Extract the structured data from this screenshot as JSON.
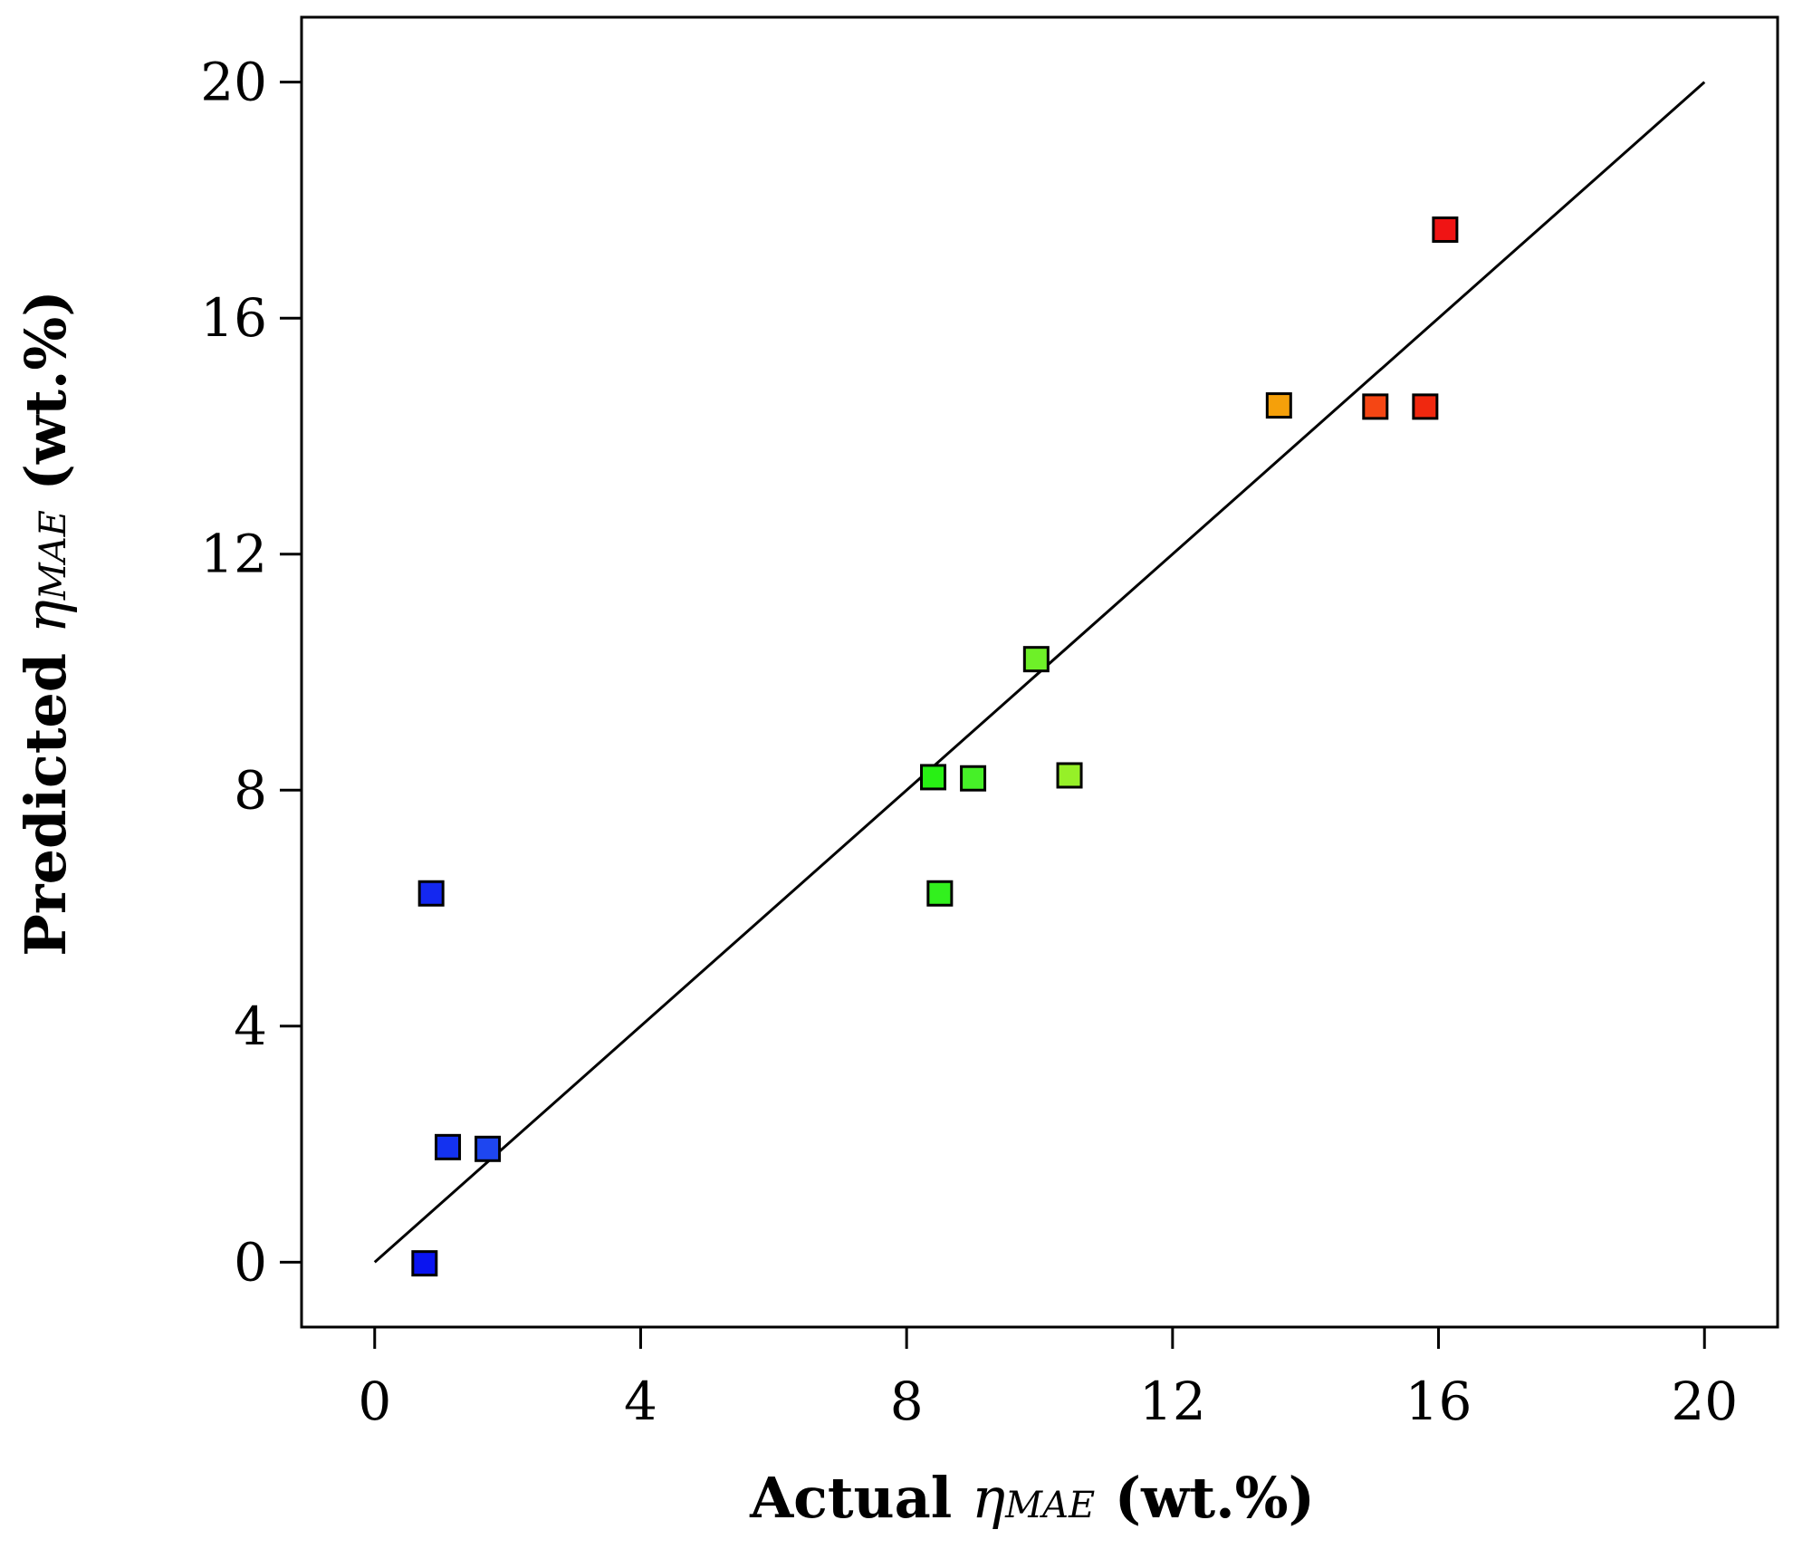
{
  "chart_data": {
    "type": "scatter",
    "title": "",
    "xlabel": {
      "prefix": "Actual ",
      "symbol": "η",
      "subscript": "MAE",
      "suffix": " (wt.%)"
    },
    "ylabel": {
      "prefix": "Predicted ",
      "symbol": "η",
      "subscript": "MAE",
      "suffix": " (wt.%)"
    },
    "xlim": [
      -1.1,
      21.1
    ],
    "ylim": [
      -1.1,
      21.1
    ],
    "xticks": [
      0,
      4,
      8,
      12,
      16,
      20
    ],
    "yticks": [
      0,
      4,
      8,
      12,
      16,
      20
    ],
    "xtick_labels": [
      "0",
      "4",
      "8",
      "12",
      "16",
      "20"
    ],
    "ytick_labels": [
      "0",
      "4",
      "8",
      "12",
      "16",
      "20"
    ],
    "grid": false,
    "reference_line": {
      "x": [
        0,
        20
      ],
      "y": [
        0,
        20
      ]
    },
    "points": [
      {
        "x": 0.75,
        "y": -0.02,
        "color": "#0a14f0"
      },
      {
        "x": 0.85,
        "y": 6.25,
        "color": "#1428f0"
      },
      {
        "x": 1.1,
        "y": 1.95,
        "color": "#1432f0"
      },
      {
        "x": 1.7,
        "y": 1.92,
        "color": "#1e46f0"
      },
      {
        "x": 8.4,
        "y": 8.22,
        "color": "#28f014"
      },
      {
        "x": 8.5,
        "y": 6.25,
        "color": "#32f01e"
      },
      {
        "x": 9.0,
        "y": 8.2,
        "color": "#46f028"
      },
      {
        "x": 9.95,
        "y": 10.22,
        "color": "#6ef028"
      },
      {
        "x": 10.45,
        "y": 8.25,
        "color": "#96f028"
      },
      {
        "x": 13.6,
        "y": 14.52,
        "color": "#f5a00a"
      },
      {
        "x": 15.05,
        "y": 14.5,
        "color": "#f54614"
      },
      {
        "x": 15.8,
        "y": 14.5,
        "color": "#f0280f"
      },
      {
        "x": 16.1,
        "y": 17.5,
        "color": "#f01414"
      }
    ]
  }
}
